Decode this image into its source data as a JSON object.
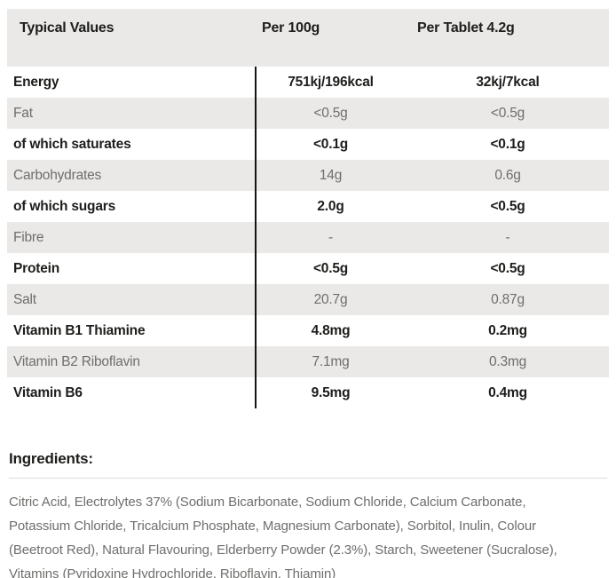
{
  "colors": {
    "row_shaded_bg": "#eae9e7",
    "strong_text": "#1d1d1b",
    "muted_text": "#6f6e6c",
    "column_divider": "#151513",
    "section_divider": "#dcdcdc",
    "page_bg": "#ffffff"
  },
  "table": {
    "header": {
      "typical_values": "Typical Values",
      "per_100g": "Per 100g",
      "per_tablet": "Per Tablet 4.2g"
    },
    "rows": [
      {
        "label": "Energy",
        "per_100g": "751kj/196kcal",
        "per_tablet": "32kj/7kcal"
      },
      {
        "label": "Fat",
        "per_100g": "<0.5g",
        "per_tablet": "<0.5g"
      },
      {
        "label": "of which saturates",
        "per_100g": "<0.1g",
        "per_tablet": "<0.1g"
      },
      {
        "label": "Carbohydrates",
        "per_100g": "14g",
        "per_tablet": "0.6g"
      },
      {
        "label": "of which sugars",
        "per_100g": "2.0g",
        "per_tablet": "<0.5g"
      },
      {
        "label": "Fibre",
        "per_100g": "-",
        "per_tablet": "-"
      },
      {
        "label": "Protein",
        "per_100g": "<0.5g",
        "per_tablet": "<0.5g"
      },
      {
        "label": "Salt",
        "per_100g": "20.7g",
        "per_tablet": "0.87g"
      },
      {
        "label": "Vitamin B1 Thiamine",
        "per_100g": "4.8mg",
        "per_tablet": "0.2mg"
      },
      {
        "label": "Vitamin B2 Riboflavin",
        "per_100g": "7.1mg",
        "per_tablet": "0.3mg"
      },
      {
        "label": "Vitamin B6",
        "per_100g": "9.5mg",
        "per_tablet": "0.4mg"
      }
    ]
  },
  "ingredients": {
    "heading": "Ingredients:",
    "lines": [
      "Citric Acid, Electrolytes 37% (Sodium Bicarbonate, Sodium Chloride, Calcium Carbonate,",
      "Potassium Chloride, Tricalcium Phosphate, Magnesium Carbonate), Sorbitol, Inulin, Colour",
      "(Beetroot Red), Natural Flavouring, Elderberry Powder (2.3%), Starch, Sweetener (Sucralose),",
      "Vitamins (Pyridoxine Hydrochloride, Riboflavin, Thiamin)"
    ]
  }
}
